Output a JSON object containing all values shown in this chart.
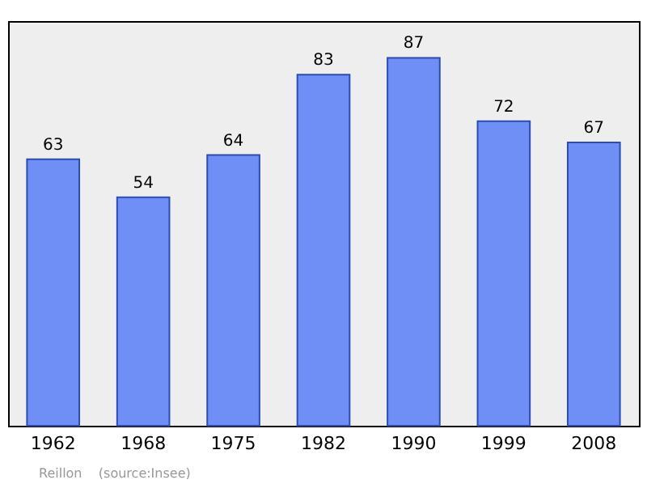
{
  "chart_data": {
    "type": "bar",
    "categories": [
      "1962",
      "1968",
      "1975",
      "1982",
      "1990",
      "1999",
      "2008"
    ],
    "values": [
      63,
      54,
      64,
      83,
      87,
      72,
      67
    ],
    "color": "#6f8ff7",
    "data_labels": true,
    "annotations": [
      "Reillon    (source:Insee)"
    ]
  }
}
